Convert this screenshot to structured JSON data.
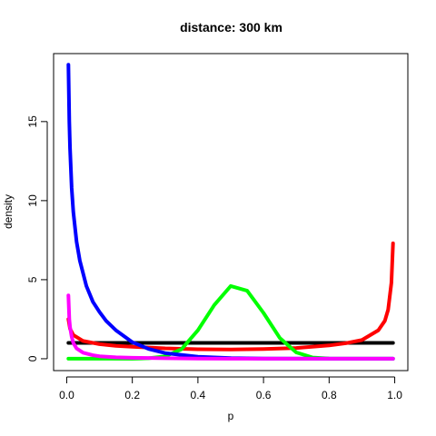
{
  "chart_data": {
    "type": "line",
    "title": "distance: 300 km",
    "xlabel": "p",
    "ylabel": "density",
    "xlim": [
      -0.04,
      1.04
    ],
    "ylim": [
      -0.75,
      19.3
    ],
    "xticks": [
      0.0,
      0.2,
      0.4,
      0.6,
      0.8,
      1.0
    ],
    "xtick_labels": [
      "0.0",
      "0.2",
      "0.4",
      "0.6",
      "0.8",
      "1.0"
    ],
    "yticks": [
      0,
      5,
      10,
      15
    ],
    "ytick_labels": [
      "0",
      "5",
      "10",
      "15"
    ],
    "grid": false,
    "legend": "none",
    "series": [
      {
        "color": "#000000",
        "x": [
          0.005,
          0.995
        ],
        "y": [
          1.0,
          1.0
        ]
      },
      {
        "color": "#ff0000",
        "x": [
          0.005,
          0.01,
          0.02,
          0.05,
          0.1,
          0.15,
          0.2,
          0.3,
          0.4,
          0.5,
          0.6,
          0.7,
          0.8,
          0.85,
          0.9,
          0.95,
          0.97,
          0.98,
          0.99,
          0.995
        ],
        "y": [
          2.5,
          1.9,
          1.5,
          1.12,
          0.92,
          0.82,
          0.76,
          0.66,
          0.6,
          0.58,
          0.61,
          0.68,
          0.84,
          0.98,
          1.18,
          1.8,
          2.4,
          3.1,
          4.8,
          7.3
        ]
      },
      {
        "color": "#00ff00",
        "x": [
          0.005,
          0.2,
          0.25,
          0.3,
          0.35,
          0.4,
          0.45,
          0.5,
          0.55,
          0.6,
          0.65,
          0.7,
          0.75,
          0.8,
          0.995
        ],
        "y": [
          0.0,
          0.0,
          0.03,
          0.15,
          0.6,
          1.8,
          3.4,
          4.6,
          4.3,
          2.9,
          1.3,
          0.4,
          0.08,
          0.01,
          0.0
        ]
      },
      {
        "color": "#0000ff",
        "x": [
          0.005,
          0.008,
          0.01,
          0.015,
          0.02,
          0.03,
          0.04,
          0.06,
          0.08,
          0.1,
          0.12,
          0.15,
          0.2,
          0.25,
          0.3,
          0.4,
          0.5,
          0.6,
          0.8,
          0.995
        ],
        "y": [
          18.6,
          15.0,
          13.3,
          10.8,
          9.3,
          7.4,
          6.2,
          4.6,
          3.6,
          2.95,
          2.4,
          1.8,
          1.05,
          0.62,
          0.36,
          0.13,
          0.04,
          0.01,
          0.0,
          0.0
        ]
      },
      {
        "color": "#ff00ff",
        "x": [
          0.005,
          0.008,
          0.01,
          0.015,
          0.02,
          0.03,
          0.05,
          0.08,
          0.1,
          0.15,
          0.2,
          0.3,
          0.4,
          0.6,
          0.8,
          0.995
        ],
        "y": [
          4.0,
          2.5,
          2.0,
          1.4,
          1.0,
          0.65,
          0.38,
          0.22,
          0.16,
          0.09,
          0.06,
          0.03,
          0.01,
          0.0,
          0.0,
          0.0
        ]
      }
    ]
  }
}
